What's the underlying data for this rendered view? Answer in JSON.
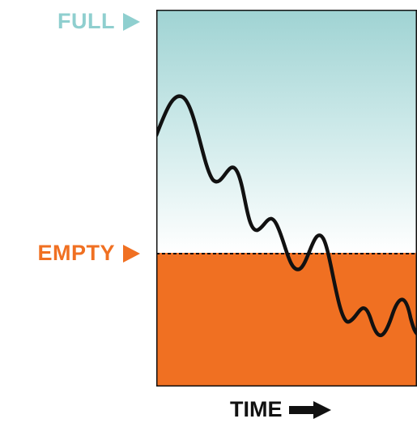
{
  "labels": {
    "full": "FULL",
    "empty": "EMPTY",
    "time": "TIME"
  },
  "icons": {
    "full_marker": "right-triangle-icon",
    "empty_marker": "right-triangle-icon",
    "time_arrow": "right-arrow-icon"
  },
  "colors": {
    "full": "#8FCFCF",
    "empty": "#F07022",
    "text_dark": "#111111",
    "wave": "#111111"
  }
}
